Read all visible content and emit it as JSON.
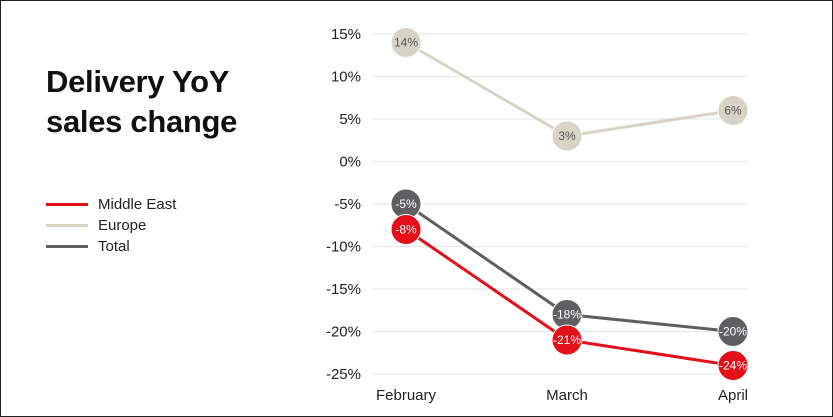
{
  "chart_data": {
    "type": "line",
    "title": "Delivery YoY sales change",
    "categories": [
      "February",
      "March",
      "April"
    ],
    "series": [
      {
        "name": "Middle East",
        "values": [
          -8,
          -21,
          -24
        ],
        "color": "#e3101a"
      },
      {
        "name": "Europe",
        "values": [
          14,
          3,
          6
        ],
        "color": "#d8d3c4"
      },
      {
        "name": "Total",
        "values": [
          -5,
          -18,
          -20
        ],
        "color": "#5f5f63"
      }
    ],
    "y_ticks": [
      "15%",
      "10%",
      "5%",
      "0%",
      "-5%",
      "-10%",
      "-15%",
      "-20%",
      "-25%"
    ],
    "ylim": [
      -25,
      15
    ],
    "grid": true,
    "legend_position": "left",
    "data_label_suffix": "%"
  }
}
